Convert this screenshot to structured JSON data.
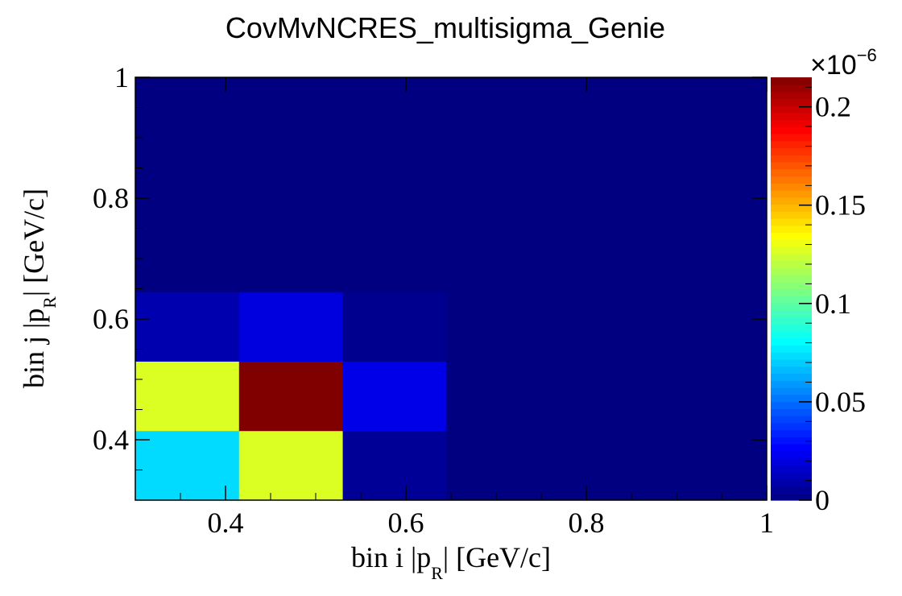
{
  "chart_data": {
    "type": "heatmap",
    "title": "CovMvNCRES_multisigma_Genie",
    "xlabel": {
      "prefix": "bin i |",
      "vector": "p",
      "subscript": "R",
      "suffix": "| [GeV/c]"
    },
    "ylabel": {
      "prefix": "bin j |",
      "vector": "p",
      "subscript": "R",
      "suffix": "| [GeV/c]"
    },
    "x_edges": [
      0.3,
      0.415,
      0.53,
      0.645,
      1.0
    ],
    "y_edges": [
      0.3,
      0.415,
      0.53,
      0.645,
      1.0
    ],
    "values": [
      [
        0.073,
        0.127,
        0.005,
        0.0
      ],
      [
        0.127,
        0.215,
        0.022,
        0.0
      ],
      [
        0.01,
        0.02,
        0.003,
        0.0
      ],
      [
        0.0,
        0.0,
        0.0,
        0.0
      ]
    ],
    "xlim": [
      0.3,
      1.0
    ],
    "ylim": [
      0.3,
      1.0
    ],
    "x_ticks": [
      "0.4",
      "0.6",
      "0.8",
      "1"
    ],
    "x_tick_values": [
      0.4,
      0.6,
      0.8,
      1.0
    ],
    "y_ticks": [
      "0.4",
      "0.6",
      "0.8",
      "1"
    ],
    "y_tick_values": [
      0.4,
      0.6,
      0.8,
      1.0
    ],
    "z_range": [
      0,
      0.215
    ],
    "z_ticks": [
      "0",
      "0.05",
      "0.1",
      "0.15",
      "0.2"
    ],
    "z_tick_values": [
      0,
      0.05,
      0.1,
      0.15,
      0.2
    ],
    "z_multiplier": {
      "base": "×10",
      "exponent": "−6"
    },
    "colormap": "jet",
    "colors": {
      "background": "#ffffff",
      "empty_cell": "#00007f"
    },
    "grid": false
  }
}
